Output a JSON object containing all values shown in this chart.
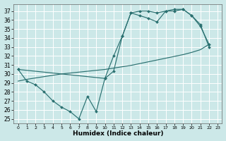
{
  "xlabel": "Humidex (Indice chaleur)",
  "background_color": "#cce8e8",
  "grid_color": "#ffffff",
  "line_color": "#2a7070",
  "xlim": [
    -0.5,
    23.5
  ],
  "ylim": [
    24.5,
    37.8
  ],
  "yticks": [
    25,
    26,
    27,
    28,
    29,
    30,
    31,
    32,
    33,
    34,
    35,
    36,
    37
  ],
  "xticks": [
    0,
    1,
    2,
    3,
    4,
    5,
    6,
    7,
    8,
    9,
    10,
    11,
    12,
    13,
    14,
    15,
    16,
    17,
    18,
    19,
    20,
    21,
    22,
    23
  ],
  "curve1_x": [
    0,
    1,
    2,
    3,
    4,
    5,
    6,
    7,
    8,
    9,
    10,
    11,
    12,
    13,
    14,
    15,
    16,
    17,
    18,
    19,
    20,
    21,
    22
  ],
  "curve1_y": [
    30.5,
    29.2,
    28.8,
    28.0,
    27.0,
    26.3,
    25.8,
    25.0,
    27.5,
    25.8,
    29.5,
    32.0,
    34.2,
    36.8,
    37.0,
    37.0,
    36.8,
    37.0,
    37.0,
    37.2,
    36.5,
    35.5,
    33.0
  ],
  "curve2_x": [
    0,
    1,
    2,
    3,
    4,
    5,
    6,
    7,
    8,
    9,
    10,
    11,
    12,
    13,
    14,
    15,
    16,
    17,
    18,
    19,
    20,
    21,
    22
  ],
  "curve2_y": [
    29.2,
    29.4,
    29.55,
    29.7,
    29.85,
    30.0,
    30.1,
    30.2,
    30.3,
    30.4,
    30.5,
    30.65,
    30.8,
    30.95,
    31.15,
    31.35,
    31.55,
    31.75,
    31.95,
    32.15,
    32.4,
    32.7,
    33.3
  ],
  "curve3_x": [
    0,
    10,
    11,
    12,
    13,
    14,
    15,
    16,
    17,
    18,
    19,
    20,
    21,
    22
  ],
  "curve3_y": [
    30.5,
    29.5,
    30.3,
    34.2,
    36.8,
    36.5,
    36.2,
    35.8,
    37.0,
    37.2,
    37.2,
    36.5,
    35.3,
    33.3
  ]
}
